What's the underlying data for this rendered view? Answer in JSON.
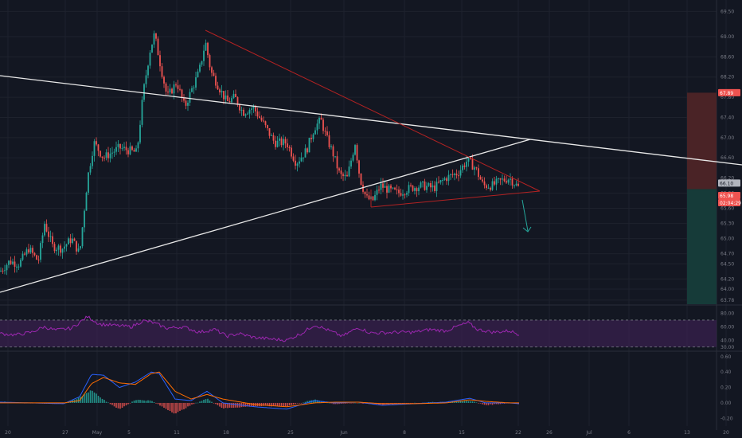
{
  "colors": {
    "background": "#131722",
    "grid": "#1e222d",
    "separator": "#2a2e39",
    "up_candle": "#26a69a",
    "down_candle": "#ef5350",
    "trendline_white": "#e8e8e8",
    "trendline_red": "#b22222",
    "target_arrow": "#26a69a",
    "rsi_line": "#9c27b0",
    "rsi_band": "#3a2150",
    "macd_line": "#2962ff",
    "signal_line": "#ff6d00",
    "stop_zone": "#4a2326",
    "target_zone": "#163b39",
    "axis_text": "#787b86"
  },
  "chart_data": [
    {
      "type": "candlestick",
      "panel": "price",
      "y_ticks": [
        "69.50",
        "69.00",
        "68.60",
        "68.20",
        "67.80",
        "67.40",
        "67.00",
        "66.60",
        "66.20",
        "65.90",
        "65.60",
        "65.30",
        "65.00",
        "64.70",
        "64.50",
        "64.20",
        "64.00",
        "63.78"
      ],
      "ylim": [
        63.7,
        69.6
      ],
      "grid": true,
      "price_labels": {
        "stop": "67.89",
        "current": "66.10",
        "entry": "65.98",
        "countdown": "02:04:29"
      },
      "x_ticks": [
        "20",
        "27",
        "May",
        "5",
        "11",
        "18",
        "25",
        "Jun",
        "8",
        "15",
        "22",
        "26",
        "Jul",
        "6",
        "13",
        "20"
      ],
      "close_path": [
        [
          0,
          64.35
        ],
        [
          12,
          64.55
        ],
        [
          24,
          64.5
        ],
        [
          36,
          64.8
        ],
        [
          48,
          64.55
        ],
        [
          56,
          65.3
        ],
        [
          66,
          64.85
        ],
        [
          78,
          64.8
        ],
        [
          90,
          65.0
        ],
        [
          100,
          64.7
        ],
        [
          110,
          66.2
        ],
        [
          118,
          66.9
        ],
        [
          130,
          66.6
        ],
        [
          150,
          66.8
        ],
        [
          172,
          66.7
        ],
        [
          180,
          67.9
        ],
        [
          188,
          68.7
        ],
        [
          194,
          69.05
        ],
        [
          202,
          68.4
        ],
        [
          210,
          67.8
        ],
        [
          222,
          68.1
        ],
        [
          232,
          67.6
        ],
        [
          242,
          68.0
        ],
        [
          250,
          68.3
        ],
        [
          258,
          68.9
        ],
        [
          265,
          68.3
        ],
        [
          275,
          68.0
        ],
        [
          285,
          67.7
        ],
        [
          295,
          67.8
        ],
        [
          305,
          67.5
        ],
        [
          318,
          67.6
        ],
        [
          330,
          67.3
        ],
        [
          345,
          66.9
        ],
        [
          360,
          66.9
        ],
        [
          372,
          66.5
        ],
        [
          385,
          66.75
        ],
        [
          395,
          67.2
        ],
        [
          403,
          67.35
        ],
        [
          410,
          67.0
        ],
        [
          418,
          66.7
        ],
        [
          427,
          66.25
        ],
        [
          436,
          66.2
        ],
        [
          446,
          66.9
        ],
        [
          452,
          66.2
        ],
        [
          460,
          65.8
        ],
        [
          468,
          65.75
        ],
        [
          478,
          66.05
        ],
        [
          490,
          65.95
        ],
        [
          500,
          65.9
        ],
        [
          515,
          66.0
        ],
        [
          530,
          66.05
        ],
        [
          545,
          66.0
        ],
        [
          560,
          66.2
        ],
        [
          575,
          66.3
        ],
        [
          587,
          66.55
        ],
        [
          597,
          66.4
        ],
        [
          607,
          66.05
        ],
        [
          618,
          66.05
        ],
        [
          630,
          66.15
        ],
        [
          640,
          66.2
        ],
        [
          652,
          66.0
        ]
      ]
    },
    {
      "type": "line",
      "panel": "rsi",
      "y_ticks": [
        "80.00",
        "60.00",
        "40.00",
        "30.00"
      ],
      "ylim": [
        25,
        90
      ],
      "band": [
        30,
        70
      ],
      "path": [
        [
          0,
          50
        ],
        [
          20,
          48
        ],
        [
          40,
          52
        ],
        [
          55,
          60
        ],
        [
          70,
          55
        ],
        [
          90,
          58
        ],
        [
          110,
          75
        ],
        [
          125,
          64
        ],
        [
          145,
          62
        ],
        [
          165,
          60
        ],
        [
          180,
          69
        ],
        [
          190,
          67
        ],
        [
          210,
          58
        ],
        [
          230,
          60
        ],
        [
          250,
          52
        ],
        [
          270,
          56
        ],
        [
          285,
          46
        ],
        [
          300,
          50
        ],
        [
          320,
          44
        ],
        [
          340,
          42
        ],
        [
          360,
          40
        ],
        [
          380,
          51
        ],
        [
          395,
          63
        ],
        [
          410,
          56
        ],
        [
          430,
          46
        ],
        [
          450,
          59
        ],
        [
          465,
          51
        ],
        [
          480,
          51
        ],
        [
          500,
          52
        ],
        [
          520,
          52
        ],
        [
          540,
          56
        ],
        [
          560,
          54
        ],
        [
          575,
          61
        ],
        [
          588,
          66
        ],
        [
          600,
          56
        ],
        [
          620,
          52
        ],
        [
          640,
          54
        ],
        [
          652,
          49
        ]
      ]
    },
    {
      "type": "macd",
      "panel": "macd",
      "y_ticks": [
        "0.60",
        "0.40",
        "0.20",
        "0.00",
        "-0.20"
      ],
      "ylim": [
        -0.3,
        0.65
      ],
      "macd": [
        [
          0,
          0.01
        ],
        [
          40,
          0.0
        ],
        [
          80,
          -0.01
        ],
        [
          100,
          0.08
        ],
        [
          115,
          0.37
        ],
        [
          130,
          0.36
        ],
        [
          150,
          0.2
        ],
        [
          170,
          0.27
        ],
        [
          190,
          0.4
        ],
        [
          200,
          0.38
        ],
        [
          220,
          0.05
        ],
        [
          240,
          0.03
        ],
        [
          260,
          0.15
        ],
        [
          280,
          0.0
        ],
        [
          320,
          -0.05
        ],
        [
          360,
          -0.08
        ],
        [
          395,
          0.03
        ],
        [
          420,
          0.0
        ],
        [
          450,
          0.01
        ],
        [
          480,
          -0.03
        ],
        [
          520,
          -0.01
        ],
        [
          560,
          0.01
        ],
        [
          590,
          0.06
        ],
        [
          610,
          0.0
        ],
        [
          640,
          0.0
        ],
        [
          652,
          -0.01
        ]
      ],
      "signal": [
        [
          0,
          0.0
        ],
        [
          40,
          0.0
        ],
        [
          80,
          0.0
        ],
        [
          100,
          0.03
        ],
        [
          115,
          0.25
        ],
        [
          130,
          0.33
        ],
        [
          150,
          0.26
        ],
        [
          170,
          0.24
        ],
        [
          190,
          0.38
        ],
        [
          200,
          0.4
        ],
        [
          220,
          0.15
        ],
        [
          240,
          0.05
        ],
        [
          260,
          0.11
        ],
        [
          280,
          0.05
        ],
        [
          320,
          -0.02
        ],
        [
          360,
          -0.05
        ],
        [
          395,
          0.0
        ],
        [
          420,
          0.01
        ],
        [
          450,
          0.01
        ],
        [
          480,
          -0.01
        ],
        [
          520,
          -0.01
        ],
        [
          560,
          0.0
        ],
        [
          590,
          0.04
        ],
        [
          610,
          0.02
        ],
        [
          640,
          0.0
        ],
        [
          652,
          0.0
        ]
      ]
    }
  ]
}
